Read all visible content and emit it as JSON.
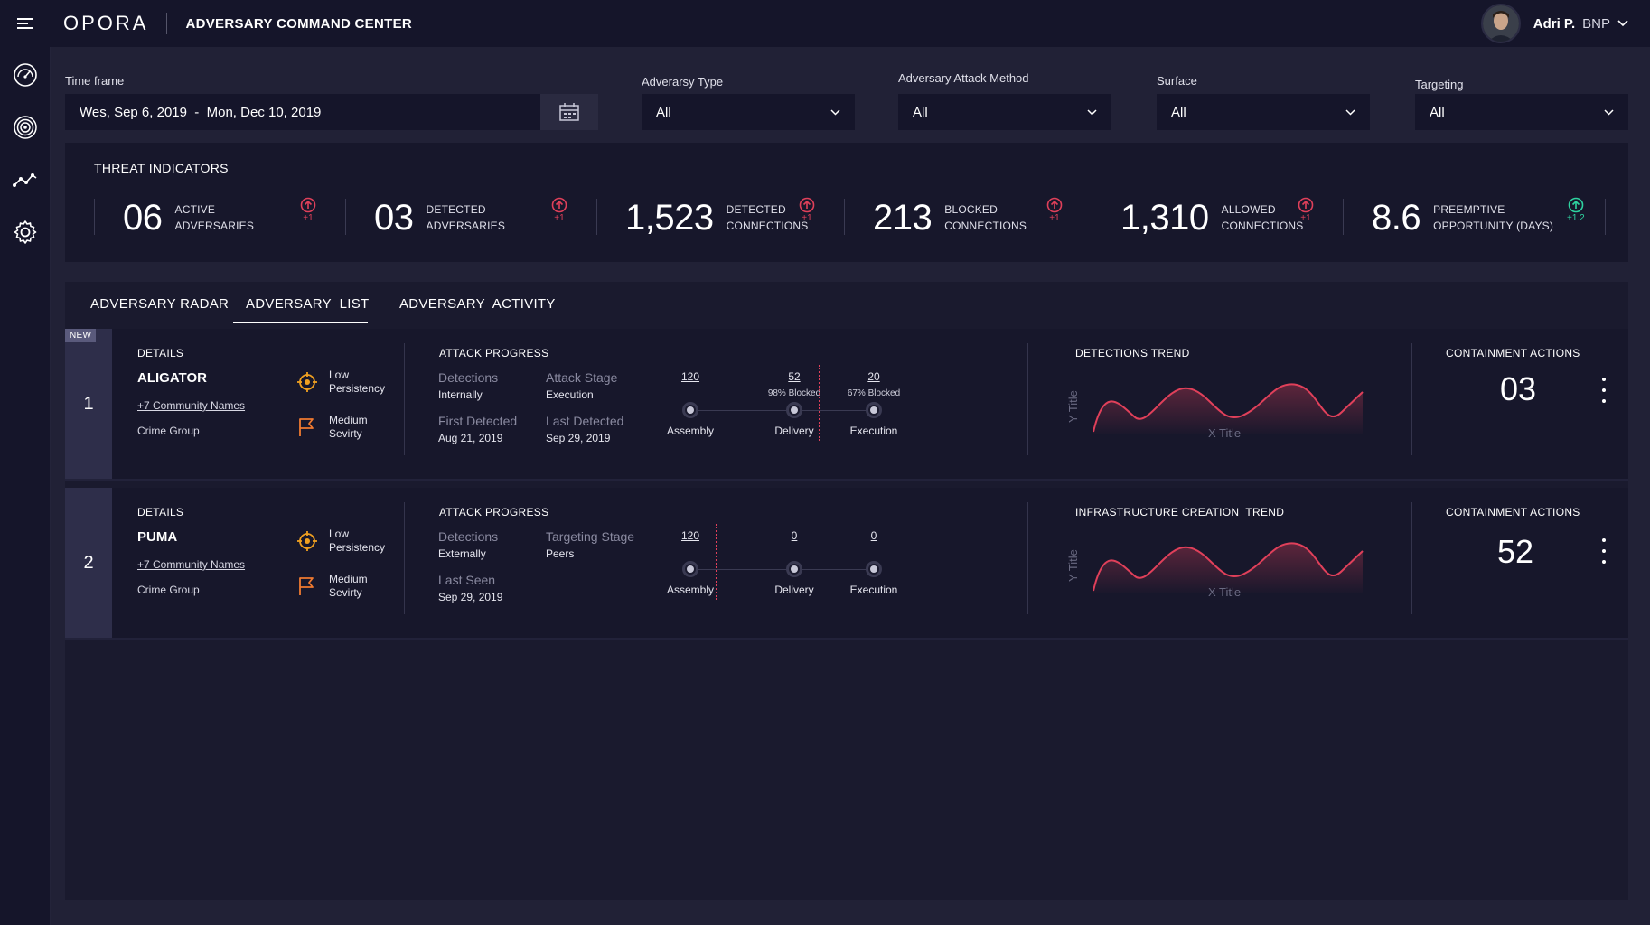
{
  "header": {
    "logo": "OPORA",
    "app_title": "ADVERSARY COMMAND CENTER",
    "user_name": "Adri P.",
    "user_org": "BNP"
  },
  "colors": {
    "accent_red": "#e0405a",
    "accent_green": "#2ed3a0",
    "icon_orange": "#f0a020"
  },
  "sidebar": {
    "items": [
      {
        "icon": "speedometer-icon"
      },
      {
        "icon": "fingerprint-icon"
      },
      {
        "icon": "trend-line-icon"
      },
      {
        "icon": "gear-icon"
      }
    ]
  },
  "filters": {
    "timeframe_label": "Time frame",
    "timeframe_value": "Wes, Sep 6, 2019  -  Mon, Dec 10, 2019",
    "adversary_type_label": "Adverarsy Type",
    "adversary_type_value": "All",
    "attack_method_label": "Adversary Attack Method",
    "attack_method_value": "All",
    "surface_label": "Surface",
    "surface_value": "All",
    "targeting_label": "Targeting",
    "targeting_value": "All"
  },
  "threat_indicators": {
    "title": "THREAT INDICATORS",
    "metrics": [
      {
        "value": "06",
        "label_line1": "ACTIVE",
        "label_line2": "ADVERSARIES",
        "delta": "+1"
      },
      {
        "value": "03",
        "label_line1": "DETECTED",
        "label_line2": "ADVERSARIES",
        "delta": "+1"
      },
      {
        "value": "1,523",
        "label_line1": "DETECTED",
        "label_line2": "CONNECTIONS",
        "delta": "+1"
      },
      {
        "value": "213",
        "label_line1": "BLOCKED",
        "label_line2": "CONNECTIONS",
        "delta": "+1"
      },
      {
        "value": "1,310",
        "label_line1": "ALLOWED",
        "label_line2": "CONNECTIONS",
        "delta": "+1"
      },
      {
        "value": "8.6",
        "label_line1": "PREEMPTIVE",
        "label_line2": "OPPORTUNITY (DAYS)",
        "delta": "+1.2"
      }
    ]
  },
  "tabs": {
    "radar": "ADVERSARY RADAR",
    "list": "ADVERSARY  LIST",
    "activity": "ADVERSARY  ACTIVITY",
    "active": "list"
  },
  "rows": [
    {
      "index": "1",
      "badge": "NEW",
      "details_title": "DETAILS",
      "name": "ALIGATOR",
      "community": "+7 Community Names",
      "group": "Crime Group",
      "persistency_line1": "Low",
      "persistency_line2": "Persistency",
      "severity_line1": "Medium",
      "severity_line2": "Sevirty",
      "progress_title": "ATTACK PROGRESS",
      "k1": "Detections",
      "v1": "Internally",
      "k2": "Attack Stage",
      "v2": "Execution",
      "k3": "First Detected",
      "v3": "Aug 21, 2019",
      "k4": "Last Detected",
      "v4": "Sep 29, 2019",
      "n1": "120",
      "n2": "52",
      "n3": "20",
      "p2": "98% Blocked",
      "p3": "67% Blocked",
      "s1": "Assembly",
      "s2": "Delivery",
      "s3": "Execution",
      "trend_title": "DETECTIONS TREND",
      "y_title": "Y Title",
      "x_title": "X Title",
      "containment_title": "CONTAINMENT ACTIONS",
      "containment_value": "03"
    },
    {
      "index": "2",
      "details_title": "DETAILS",
      "name": "PUMA",
      "community": "+7 Community Names",
      "group": "Crime Group",
      "persistency_line1": "Low",
      "persistency_line2": "Persistency",
      "severity_line1": "Medium",
      "severity_line2": "Sevirty",
      "progress_title": "ATTACK PROGRESS",
      "k1": "Detections",
      "v1": "Externally",
      "k2": "Targeting Stage",
      "v2": "Peers",
      "k3": "Last Seen",
      "v3": "Sep 29, 2019",
      "n1": "120",
      "n2": "0",
      "n3": "0",
      "s1": "Assembly",
      "s2": "Delivery",
      "s3": "Execution",
      "trend_title": "INFRASTRUCTURE CREATION  TREND",
      "y_title": "Y Title",
      "x_title": "X Title",
      "containment_title": "CONTAINMENT ACTIONS",
      "containment_value": "52"
    }
  ]
}
